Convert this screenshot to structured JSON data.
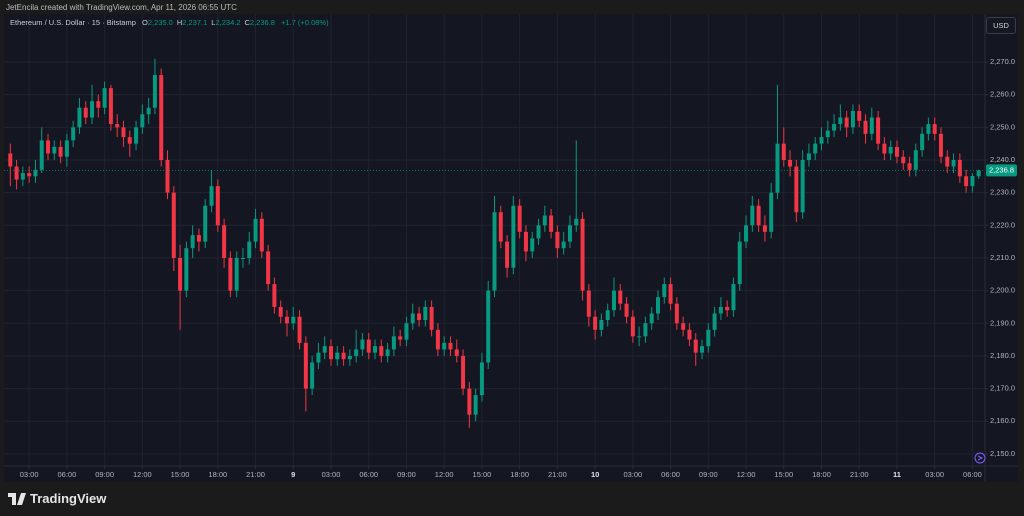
{
  "header": {
    "credit": "JetEncila created with TradingView.com, Apr 11, 2026 06:55 UTC",
    "logo": "TradingView"
  },
  "chart_data": {
    "type": "candlestick",
    "symbol": "Ethereum / U.S. Dollar · 15 · Bitstamp",
    "legend": [
      {
        "label": "O",
        "value": "2,235.0"
      },
      {
        "label": "H",
        "value": "2,237.1"
      },
      {
        "label": "L",
        "value": "2,234.2"
      },
      {
        "label": "C",
        "value": "2,236.8"
      }
    ],
    "change": "+1.7 (+0.08%)",
    "currency": "USD",
    "up_color": "#089981",
    "down_color": "#f23645",
    "last_price": {
      "value": 2236.8,
      "label": "2,236.8"
    },
    "xlim": [
      -1,
      155
    ],
    "xticks": [
      {
        "value": 3,
        "label": "03:00"
      },
      {
        "value": 9,
        "label": "06:00"
      },
      {
        "value": 15,
        "label": "09:00"
      },
      {
        "value": 21,
        "label": "12:00"
      },
      {
        "value": 27,
        "label": "15:00"
      },
      {
        "value": 33,
        "label": "18:00"
      },
      {
        "value": 39,
        "label": "21:00"
      },
      {
        "value": 45,
        "label": "9"
      },
      {
        "value": 51,
        "label": "03:00"
      },
      {
        "value": 57,
        "label": "06:00"
      },
      {
        "value": 63,
        "label": "09:00"
      },
      {
        "value": 69,
        "label": "12:00"
      },
      {
        "value": 75,
        "label": "15:00"
      },
      {
        "value": 81,
        "label": "18:00"
      },
      {
        "value": 87,
        "label": "21:00"
      },
      {
        "value": 93,
        "label": "10"
      },
      {
        "value": 99,
        "label": "03:00"
      },
      {
        "value": 105,
        "label": "06:00"
      },
      {
        "value": 111,
        "label": "09:00"
      },
      {
        "value": 117,
        "label": "12:00"
      },
      {
        "value": 123,
        "label": "15:00"
      },
      {
        "value": 129,
        "label": "18:00"
      },
      {
        "value": 135,
        "label": "21:00"
      },
      {
        "value": 141,
        "label": "11"
      },
      {
        "value": 147,
        "label": "03:00"
      },
      {
        "value": 153,
        "label": "06:00"
      }
    ],
    "ylim": [
      2146.3,
      2284.7
    ],
    "yticks": [
      {
        "value": 2150,
        "label": "2,150.0"
      },
      {
        "value": 2160,
        "label": "2,160.0"
      },
      {
        "value": 2170,
        "label": "2,170.0"
      },
      {
        "value": 2180,
        "label": "2,180.0"
      },
      {
        "value": 2190,
        "label": "2,190.0"
      },
      {
        "value": 2200,
        "label": "2,200.0"
      },
      {
        "value": 2210,
        "label": "2,210.0"
      },
      {
        "value": 2220,
        "label": "2,220.0"
      },
      {
        "value": 2230,
        "label": "2,230.0"
      },
      {
        "value": 2240,
        "label": "2,240.0"
      },
      {
        "value": 2250,
        "label": "2,250.0"
      },
      {
        "value": 2260,
        "label": "2,260.0"
      },
      {
        "value": 2270,
        "label": "2,270.0"
      }
    ],
    "grid": true,
    "candles": [
      [
        2242,
        2245,
        2232,
        2238
      ],
      [
        2238,
        2240,
        2231,
        2234
      ],
      [
        2234,
        2238,
        2232,
        2236
      ],
      [
        2236,
        2238,
        2233,
        2235
      ],
      [
        2235,
        2240,
        2233,
        2237
      ],
      [
        2237,
        2250,
        2236,
        2246
      ],
      [
        2246,
        2248,
        2240,
        2242
      ],
      [
        2242,
        2246,
        2240,
        2244
      ],
      [
        2244,
        2246,
        2239,
        2241
      ],
      [
        2241,
        2248,
        2238,
        2246
      ],
      [
        2246,
        2252,
        2244,
        2250
      ],
      [
        2250,
        2259,
        2248,
        2256
      ],
      [
        2256,
        2258,
        2251,
        2253
      ],
      [
        2253,
        2263,
        2251,
        2258
      ],
      [
        2258,
        2260,
        2253,
        2256
      ],
      [
        2256,
        2264,
        2254,
        2262
      ],
      [
        2262,
        2263,
        2249,
        2251
      ],
      [
        2251,
        2254,
        2247,
        2250
      ],
      [
        2250,
        2252,
        2244,
        2247
      ],
      [
        2247,
        2249,
        2241,
        2245
      ],
      [
        2245,
        2252,
        2243,
        2250
      ],
      [
        2250,
        2257,
        2248,
        2254
      ],
      [
        2254,
        2259,
        2251,
        2256
      ],
      [
        2256,
        2271,
        2254,
        2266
      ],
      [
        2266,
        2268,
        2238,
        2240
      ],
      [
        2240,
        2243,
        2228,
        2230
      ],
      [
        2230,
        2232,
        2206,
        2210
      ],
      [
        2210,
        2214,
        2188,
        2200
      ],
      [
        2200,
        2215,
        2198,
        2213
      ],
      [
        2213,
        2220,
        2210,
        2217
      ],
      [
        2217,
        2219,
        2212,
        2215
      ],
      [
        2215,
        2228,
        2213,
        2226
      ],
      [
        2226,
        2237,
        2224,
        2232
      ],
      [
        2232,
        2234,
        2218,
        2220
      ],
      [
        2220,
        2222,
        2207,
        2210
      ],
      [
        2210,
        2212,
        2198,
        2200
      ],
      [
        2200,
        2212,
        2198,
        2210
      ],
      [
        2210,
        2213,
        2207,
        2210
      ],
      [
        2210,
        2218,
        2208,
        2215
      ],
      [
        2215,
        2225,
        2213,
        2222
      ],
      [
        2222,
        2224,
        2210,
        2212
      ],
      [
        2212,
        2214,
        2200,
        2202
      ],
      [
        2202,
        2204,
        2193,
        2195
      ],
      [
        2195,
        2197,
        2190,
        2192
      ],
      [
        2192,
        2194,
        2186,
        2190
      ],
      [
        2190,
        2195,
        2188,
        2192
      ],
      [
        2192,
        2194,
        2182,
        2184
      ],
      [
        2184,
        2186,
        2163,
        2170
      ],
      [
        2170,
        2180,
        2168,
        2178
      ],
      [
        2178,
        2184,
        2176,
        2181
      ],
      [
        2181,
        2186,
        2179,
        2183
      ],
      [
        2183,
        2185,
        2177,
        2179
      ],
      [
        2179,
        2183,
        2177,
        2181
      ],
      [
        2181,
        2183,
        2177,
        2179
      ],
      [
        2179,
        2182,
        2177,
        2180
      ],
      [
        2180,
        2188,
        2178,
        2182
      ],
      [
        2182,
        2187,
        2180,
        2185
      ],
      [
        2185,
        2187,
        2179,
        2181
      ],
      [
        2181,
        2185,
        2179,
        2183
      ],
      [
        2183,
        2185,
        2178,
        2180
      ],
      [
        2180,
        2184,
        2178,
        2182
      ],
      [
        2182,
        2189,
        2180,
        2186
      ],
      [
        2186,
        2188,
        2183,
        2185
      ],
      [
        2185,
        2192,
        2183,
        2190
      ],
      [
        2190,
        2196,
        2188,
        2193
      ],
      [
        2193,
        2195,
        2189,
        2191
      ],
      [
        2191,
        2197,
        2189,
        2195
      ],
      [
        2195,
        2197,
        2186,
        2188
      ],
      [
        2188,
        2190,
        2180,
        2182
      ],
      [
        2182,
        2186,
        2180,
        2184
      ],
      [
        2184,
        2186,
        2180,
        2182
      ],
      [
        2182,
        2185,
        2178,
        2180
      ],
      [
        2180,
        2182,
        2168,
        2170
      ],
      [
        2170,
        2172,
        2158,
        2162
      ],
      [
        2162,
        2170,
        2160,
        2168
      ],
      [
        2168,
        2181,
        2166,
        2178
      ],
      [
        2178,
        2203,
        2176,
        2200
      ],
      [
        2200,
        2229,
        2198,
        2224
      ],
      [
        2224,
        2226,
        2213,
        2215
      ],
      [
        2215,
        2217,
        2204,
        2207
      ],
      [
        2207,
        2229,
        2205,
        2226
      ],
      [
        2226,
        2228,
        2216,
        2218
      ],
      [
        2218,
        2220,
        2209,
        2212
      ],
      [
        2212,
        2218,
        2210,
        2216
      ],
      [
        2216,
        2222,
        2214,
        2220
      ],
      [
        2220,
        2226,
        2218,
        2223
      ],
      [
        2223,
        2225,
        2216,
        2218
      ],
      [
        2218,
        2220,
        2210,
        2213
      ],
      [
        2213,
        2218,
        2211,
        2215
      ],
      [
        2215,
        2223,
        2213,
        2220
      ],
      [
        2220,
        2246,
        2218,
        2222
      ],
      [
        2222,
        2224,
        2197,
        2200
      ],
      [
        2200,
        2202,
        2189,
        2192
      ],
      [
        2192,
        2194,
        2185,
        2188
      ],
      [
        2188,
        2193,
        2186,
        2191
      ],
      [
        2191,
        2196,
        2189,
        2194
      ],
      [
        2194,
        2204,
        2192,
        2200
      ],
      [
        2200,
        2202,
        2194,
        2196
      ],
      [
        2196,
        2198,
        2190,
        2192
      ],
      [
        2192,
        2194,
        2184,
        2186
      ],
      [
        2186,
        2189,
        2183,
        2186
      ],
      [
        2186,
        2192,
        2184,
        2190
      ],
      [
        2190,
        2195,
        2188,
        2193
      ],
      [
        2193,
        2200,
        2191,
        2198
      ],
      [
        2198,
        2204,
        2196,
        2202
      ],
      [
        2202,
        2204,
        2194,
        2196
      ],
      [
        2196,
        2198,
        2188,
        2190
      ],
      [
        2190,
        2192,
        2186,
        2188
      ],
      [
        2188,
        2190,
        2183,
        2185
      ],
      [
        2185,
        2187,
        2177,
        2181
      ],
      [
        2181,
        2185,
        2179,
        2183
      ],
      [
        2183,
        2190,
        2181,
        2188
      ],
      [
        2188,
        2195,
        2186,
        2193
      ],
      [
        2193,
        2198,
        2191,
        2195
      ],
      [
        2195,
        2197,
        2192,
        2194
      ],
      [
        2194,
        2204,
        2192,
        2202
      ],
      [
        2202,
        2218,
        2200,
        2215
      ],
      [
        2215,
        2223,
        2213,
        2220
      ],
      [
        2220,
        2229,
        2218,
        2226
      ],
      [
        2226,
        2228,
        2218,
        2220
      ],
      [
        2220,
        2223,
        2215,
        2218
      ],
      [
        2218,
        2233,
        2216,
        2230
      ],
      [
        2230,
        2263,
        2228,
        2245
      ],
      [
        2245,
        2250,
        2238,
        2240
      ],
      [
        2240,
        2243,
        2235,
        2238
      ],
      [
        2238,
        2240,
        2221,
        2224
      ],
      [
        2224,
        2243,
        2222,
        2240
      ],
      [
        2240,
        2245,
        2238,
        2242
      ],
      [
        2242,
        2247,
        2240,
        2245
      ],
      [
        2245,
        2250,
        2243,
        2247
      ],
      [
        2247,
        2252,
        2245,
        2249
      ],
      [
        2249,
        2254,
        2247,
        2251
      ],
      [
        2251,
        2257,
        2249,
        2253
      ],
      [
        2253,
        2255,
        2247,
        2250
      ],
      [
        2250,
        2257,
        2248,
        2255
      ],
      [
        2255,
        2257,
        2250,
        2252
      ],
      [
        2252,
        2254,
        2245,
        2248
      ],
      [
        2248,
        2256,
        2246,
        2253
      ],
      [
        2253,
        2255,
        2243,
        2245
      ],
      [
        2245,
        2247,
        2240,
        2242
      ],
      [
        2242,
        2246,
        2240,
        2244
      ],
      [
        2244,
        2246,
        2239,
        2241
      ],
      [
        2241,
        2243,
        2237,
        2239
      ],
      [
        2239,
        2241,
        2235,
        2237
      ],
      [
        2237,
        2245,
        2235,
        2243
      ],
      [
        2243,
        2250,
        2241,
        2248
      ],
      [
        2248,
        2253,
        2246,
        2251
      ],
      [
        2251,
        2253,
        2246,
        2248
      ],
      [
        2248,
        2250,
        2239,
        2241
      ],
      [
        2241,
        2243,
        2236,
        2238
      ],
      [
        2238,
        2242,
        2236,
        2240
      ],
      [
        2240,
        2242,
        2233,
        2235
      ],
      [
        2235,
        2237,
        2230,
        2232
      ],
      [
        2232,
        2236,
        2230,
        2235.1
      ],
      [
        2235.0,
        2237.1,
        2234.2,
        2236.8
      ]
    ]
  }
}
